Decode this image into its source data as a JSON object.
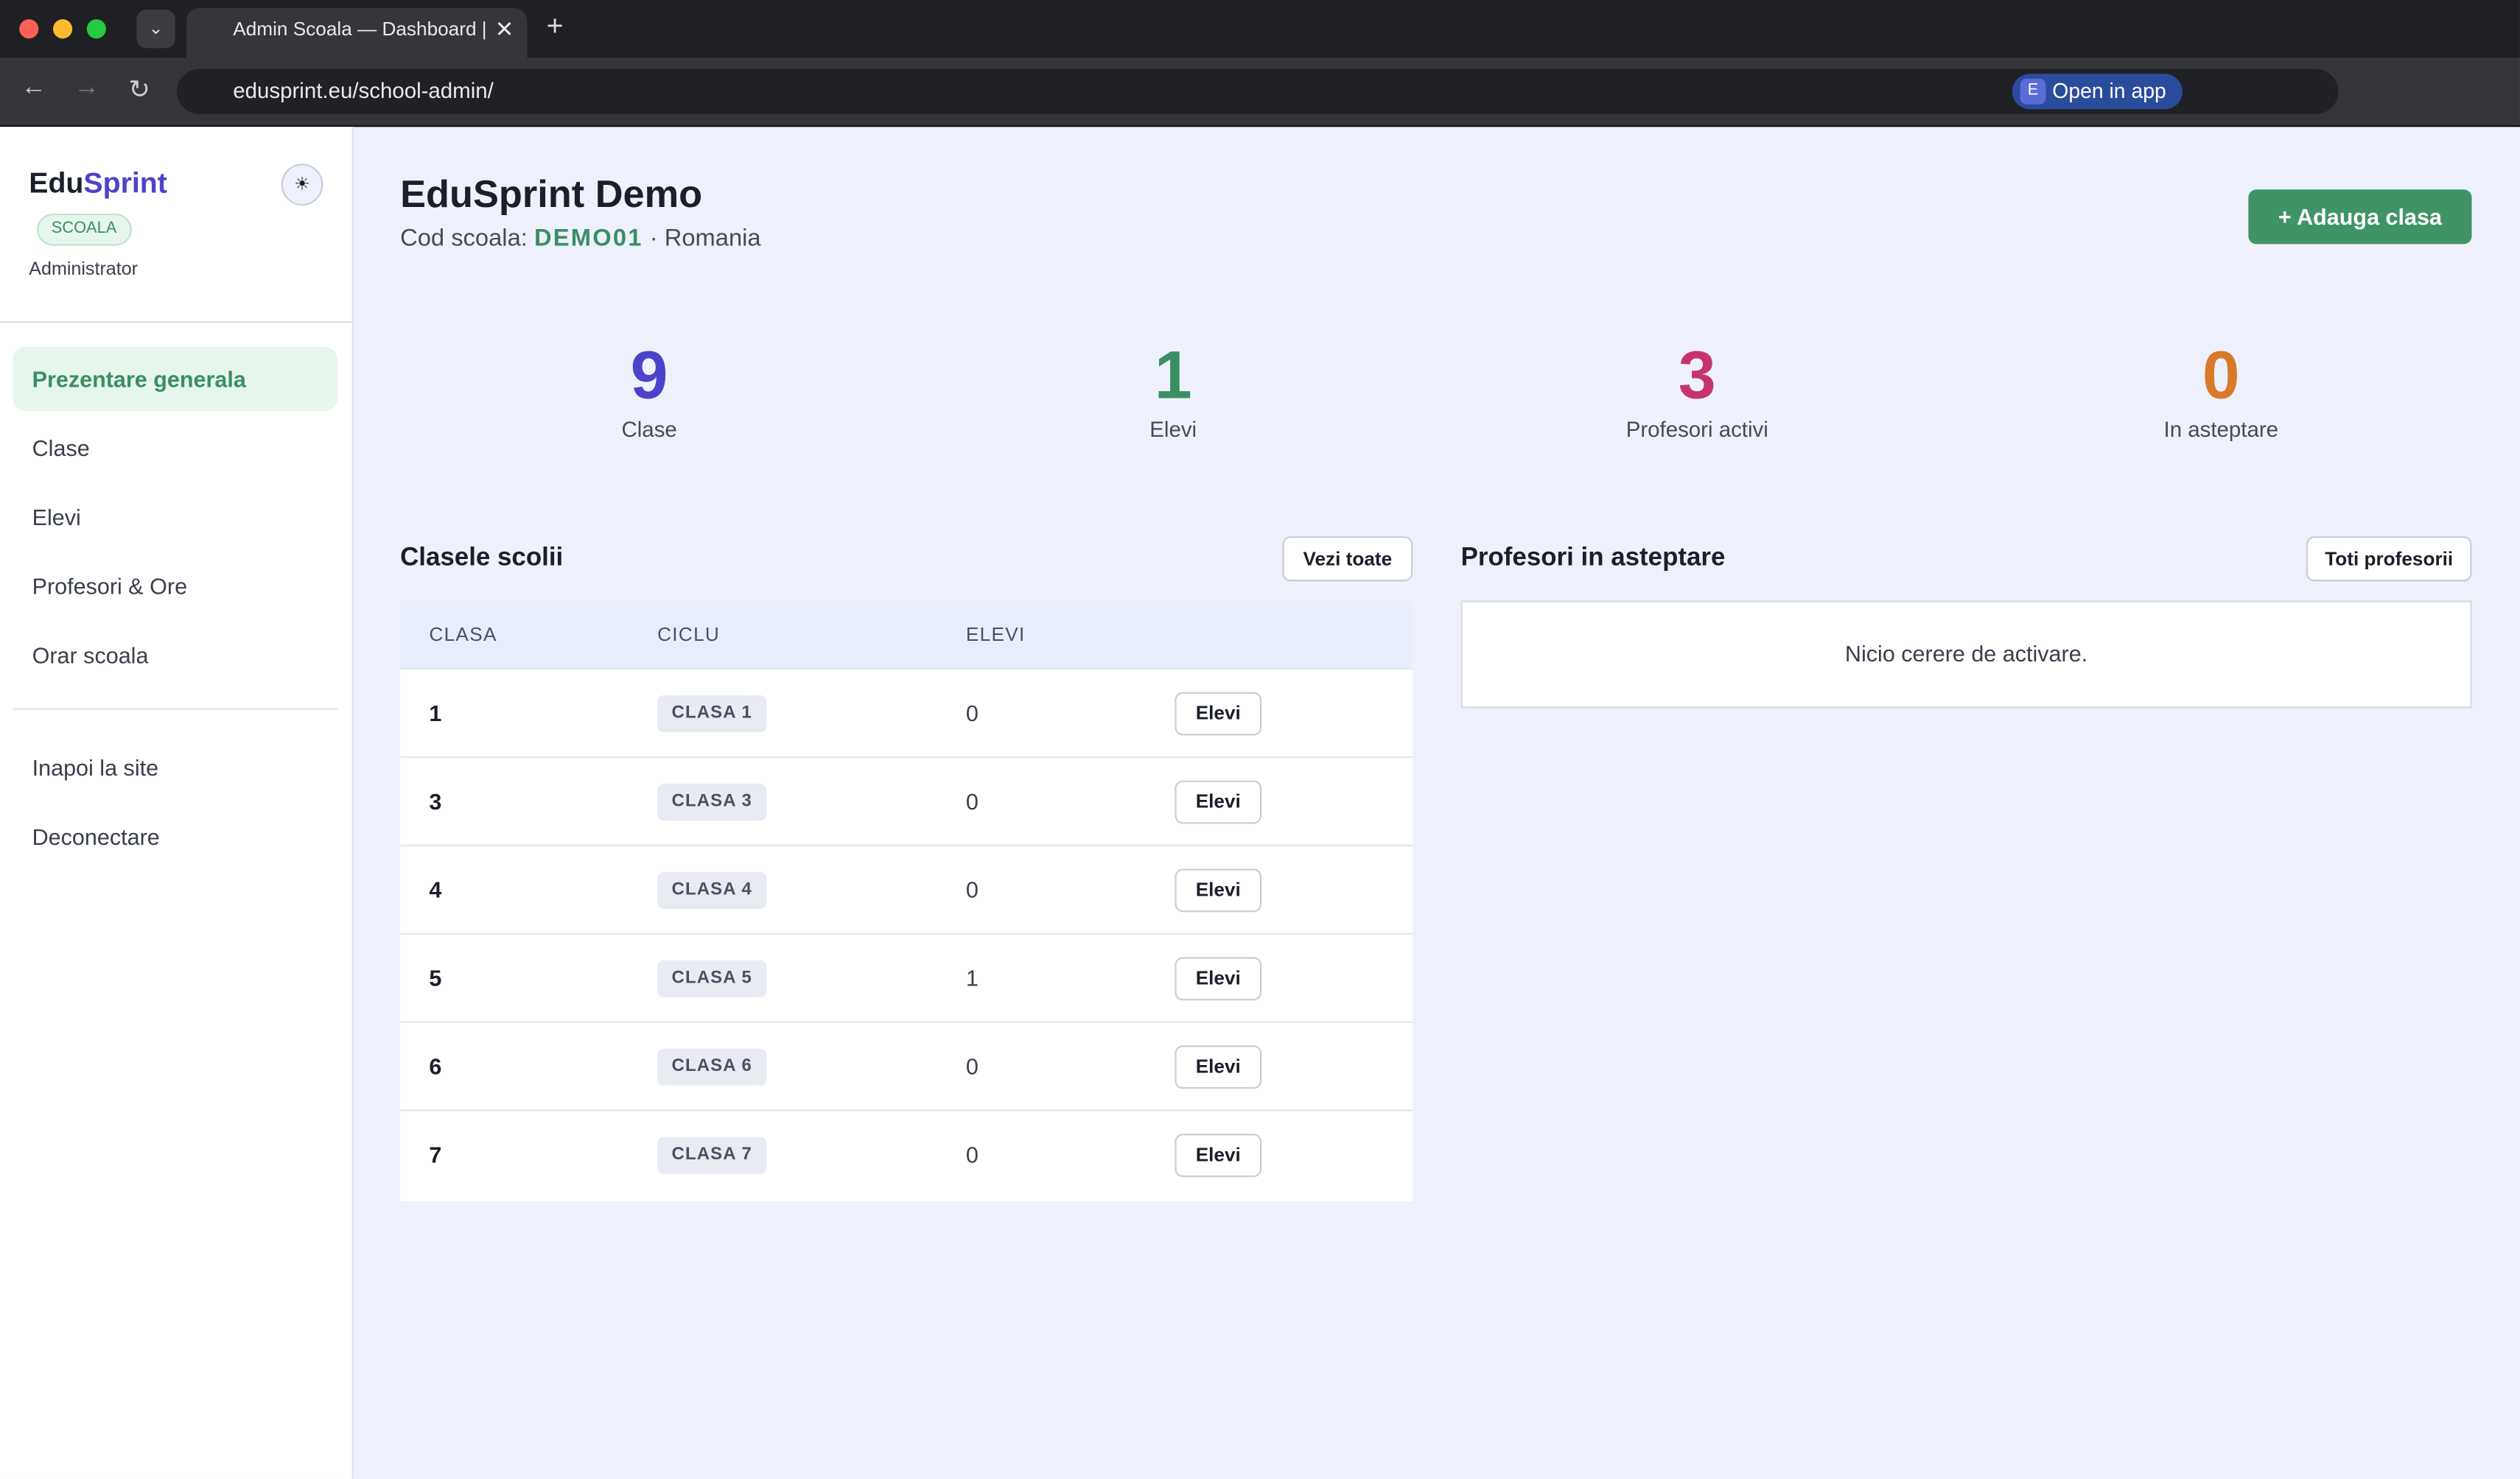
{
  "browser": {
    "tab_title": "Admin Scoala — Dashboard |",
    "url": "edusprint.eu/school-admin/",
    "open_in_app_badge": "E",
    "open_in_app": "Open in app"
  },
  "sidebar": {
    "brand_part1": "Edu",
    "brand_part2": "Sprint",
    "badge": "SCOALA",
    "role": "Administrator",
    "nav": [
      "Prezentare generala",
      "Clase",
      "Elevi",
      "Profesori & Ore",
      "Orar scoala"
    ],
    "secondary_nav": [
      "Inapoi la site",
      "Deconectare"
    ]
  },
  "header": {
    "title": "EduSprint Demo",
    "code_label": "Cod scoala:",
    "code": "DEMO01",
    "country": "· Romania",
    "add_button": "+ Adauga clasa"
  },
  "stats": [
    {
      "value": 9,
      "label": "Clase",
      "color": "#4b43cc"
    },
    {
      "value": 1,
      "label": "Elevi",
      "color": "#3a8f63"
    },
    {
      "value": 3,
      "label": "Profesori activi",
      "color": "#c8336b"
    },
    {
      "value": 0,
      "label": "In asteptare",
      "color": "#d97a2b"
    }
  ],
  "classes": {
    "title": "Clasele scolii",
    "view_all": "Vezi toate",
    "columns": [
      "CLASA",
      "CICLU",
      "ELEVI"
    ],
    "rows": [
      {
        "class": "1",
        "cycle": "CLASA 1",
        "students": 0,
        "action": "Elevi"
      },
      {
        "class": "3",
        "cycle": "CLASA 3",
        "students": 0,
        "action": "Elevi"
      },
      {
        "class": "4",
        "cycle": "CLASA 4",
        "students": 0,
        "action": "Elevi"
      },
      {
        "class": "5",
        "cycle": "CLASA 5",
        "students": 1,
        "action": "Elevi"
      },
      {
        "class": "6",
        "cycle": "CLASA 6",
        "students": 0,
        "action": "Elevi"
      },
      {
        "class": "7",
        "cycle": "CLASA 7",
        "students": 0,
        "action": "Elevi"
      }
    ]
  },
  "pending": {
    "title": "Profesori in asteptare",
    "all_button": "Toti profesorii",
    "empty": "Nicio cerere de activare."
  }
}
